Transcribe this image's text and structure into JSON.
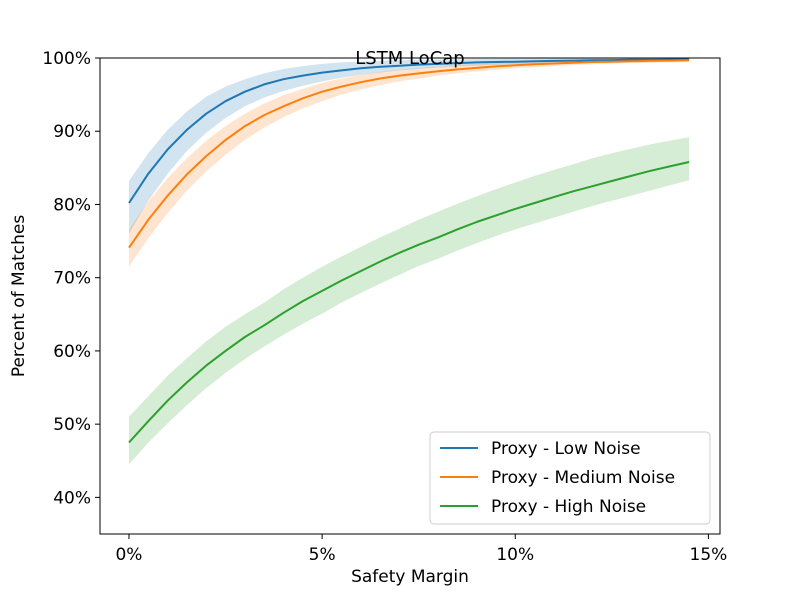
{
  "chart_data": {
    "type": "line",
    "title": "LSTM LoCap",
    "xlabel": "Safety Margin",
    "ylabel": "Percent of Matches",
    "xlim": [
      -0.75,
      15.3
    ],
    "ylim": [
      35,
      100
    ],
    "x_ticks": [
      0,
      5,
      10,
      15
    ],
    "x_tick_labels": [
      "0%",
      "5%",
      "10%",
      "15%"
    ],
    "y_ticks": [
      40,
      50,
      60,
      70,
      80,
      90,
      100
    ],
    "y_tick_labels": [
      "40%",
      "50%",
      "60%",
      "70%",
      "80%",
      "90%",
      "100%"
    ],
    "grid": false,
    "legend_position": "lower-right",
    "x": [
      0,
      0.5,
      1,
      1.5,
      2,
      2.5,
      3,
      3.5,
      4,
      4.5,
      5,
      5.5,
      6,
      6.5,
      7,
      7.5,
      8,
      8.5,
      9,
      9.5,
      10,
      10.5,
      11,
      11.5,
      12,
      12.5,
      13,
      13.5,
      14,
      14.5
    ],
    "series": [
      {
        "name": "Proxy - Low Noise",
        "color": "#1f77b4",
        "values": [
          80.2,
          84.2,
          87.5,
          90.2,
          92.4,
          94.1,
          95.4,
          96.4,
          97.1,
          97.6,
          98.0,
          98.3,
          98.6,
          98.8,
          98.95,
          99.1,
          99.2,
          99.3,
          99.4,
          99.45,
          99.5,
          99.55,
          99.6,
          99.65,
          99.7,
          99.72,
          99.75,
          99.77,
          99.8,
          99.82
        ],
        "lower": [
          76.0,
          80.5,
          84.2,
          87.3,
          89.8,
          91.8,
          93.4,
          94.6,
          95.5,
          96.2,
          96.8,
          97.3,
          97.7,
          98.0,
          98.3,
          98.5,
          98.7,
          98.85,
          98.95,
          99.05,
          99.15,
          99.25,
          99.3,
          99.35,
          99.4,
          99.45,
          99.5,
          99.55,
          99.6,
          99.6
        ],
        "upper": [
          83.2,
          87.0,
          90.2,
          92.7,
          94.7,
          96.1,
          97.1,
          97.9,
          98.5,
          98.9,
          99.2,
          99.4,
          99.5,
          99.6,
          99.68,
          99.74,
          99.78,
          99.82,
          99.85,
          99.88,
          99.9,
          99.92,
          99.93,
          99.94,
          99.95,
          99.96,
          99.96,
          99.97,
          99.97,
          99.98
        ]
      },
      {
        "name": "Proxy - Medium Noise",
        "color": "#ff7f0e",
        "values": [
          74.1,
          77.9,
          81.2,
          84.1,
          86.6,
          88.8,
          90.7,
          92.2,
          93.4,
          94.5,
          95.4,
          96.1,
          96.7,
          97.2,
          97.6,
          97.9,
          98.2,
          98.45,
          98.65,
          98.85,
          99.0,
          99.15,
          99.25,
          99.35,
          99.45,
          99.5,
          99.55,
          99.6,
          99.65,
          99.7
        ],
        "lower": [
          71.5,
          75.4,
          78.8,
          81.9,
          84.5,
          86.8,
          88.8,
          90.5,
          91.9,
          93.1,
          94.1,
          95.0,
          95.7,
          96.3,
          96.8,
          97.2,
          97.6,
          97.9,
          98.15,
          98.4,
          98.6,
          98.75,
          98.9,
          99.05,
          99.15,
          99.25,
          99.3,
          99.35,
          99.4,
          99.45
        ],
        "upper": [
          76.6,
          80.4,
          83.6,
          86.3,
          88.7,
          90.7,
          92.4,
          93.8,
          94.9,
          95.8,
          96.6,
          97.2,
          97.7,
          98.1,
          98.4,
          98.65,
          98.85,
          99.05,
          99.2,
          99.3,
          99.4,
          99.5,
          99.58,
          99.64,
          99.7,
          99.75,
          99.78,
          99.8,
          99.83,
          99.85
        ]
      },
      {
        "name": "Proxy - High Noise",
        "color": "#2ca02c",
        "values": [
          47.5,
          50.4,
          53.2,
          55.7,
          58.0,
          60.0,
          61.9,
          63.5,
          65.2,
          66.8,
          68.2,
          69.6,
          70.9,
          72.2,
          73.4,
          74.5,
          75.5,
          76.6,
          77.6,
          78.5,
          79.4,
          80.2,
          81.0,
          81.8,
          82.5,
          83.2,
          83.9,
          84.6,
          85.2,
          85.8
        ],
        "lower": [
          44.5,
          47.5,
          50.1,
          52.6,
          54.9,
          57.0,
          58.9,
          60.6,
          62.2,
          63.7,
          65.1,
          66.6,
          67.9,
          69.2,
          70.4,
          71.6,
          72.6,
          73.7,
          74.7,
          75.7,
          76.6,
          77.4,
          78.2,
          79.0,
          79.8,
          80.5,
          81.2,
          81.9,
          82.6,
          83.3
        ],
        "upper": [
          51.0,
          53.8,
          56.6,
          59.0,
          61.3,
          63.3,
          65.0,
          66.6,
          68.4,
          70.0,
          71.5,
          72.9,
          74.2,
          75.5,
          76.7,
          77.9,
          79.0,
          80.1,
          81.1,
          82.1,
          83.0,
          83.9,
          84.7,
          85.5,
          86.3,
          87.0,
          87.6,
          88.2,
          88.7,
          89.2
        ]
      }
    ]
  }
}
